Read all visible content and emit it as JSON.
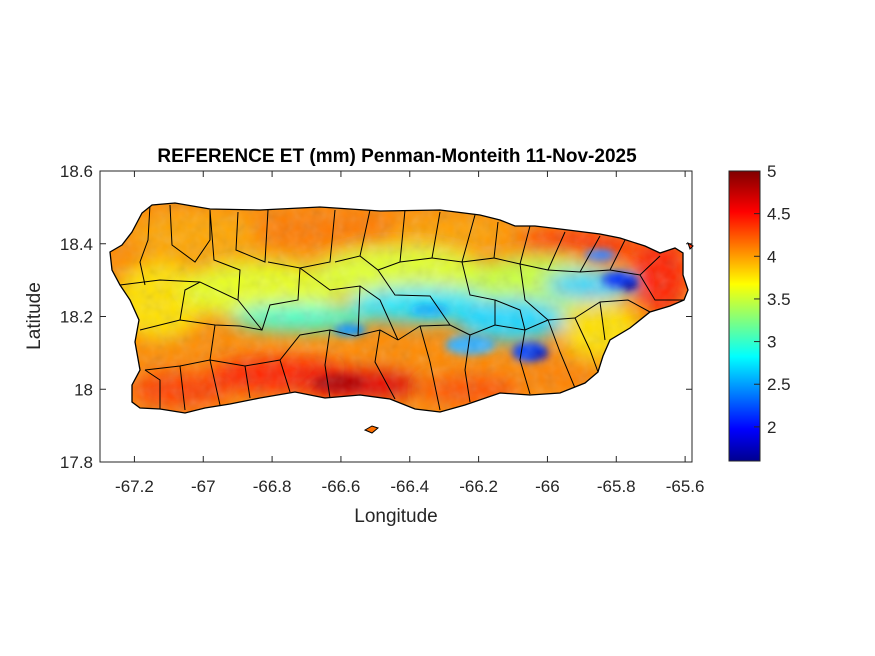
{
  "figure": {
    "title": "REFERENCE ET (mm) Penman-Monteith 11-Nov-2025",
    "xlabel": "Longitude",
    "ylabel": "Latitude"
  },
  "axes": {
    "x_ticks": [
      "-67.2",
      "-67",
      "-66.8",
      "-66.6",
      "-66.4",
      "-66.2",
      "-66",
      "-65.8",
      "-65.6"
    ],
    "x_values": [
      -67.2,
      -67.0,
      -66.8,
      -66.6,
      -66.4,
      -66.2,
      -66.0,
      -65.8,
      -65.6
    ],
    "xlim": [
      -67.3,
      -65.58
    ],
    "y_ticks": [
      "18.6",
      "18.4",
      "18.2",
      "18",
      "17.8"
    ],
    "y_values": [
      18.6,
      18.4,
      18.2,
      18.0,
      17.8
    ],
    "ylim": [
      17.8,
      18.6
    ]
  },
  "colorbar": {
    "ticks": [
      "5",
      "4.5",
      "4",
      "3.5",
      "3",
      "2.5",
      "2"
    ],
    "values": [
      5,
      4.5,
      4,
      3.5,
      3,
      2.5,
      2
    ],
    "range": [
      1.6,
      5.0
    ],
    "colormap": "jet"
  },
  "map": {
    "region": "Puerto Rico",
    "outline_color": "#000000",
    "ocean_color": "#ffffff"
  }
}
